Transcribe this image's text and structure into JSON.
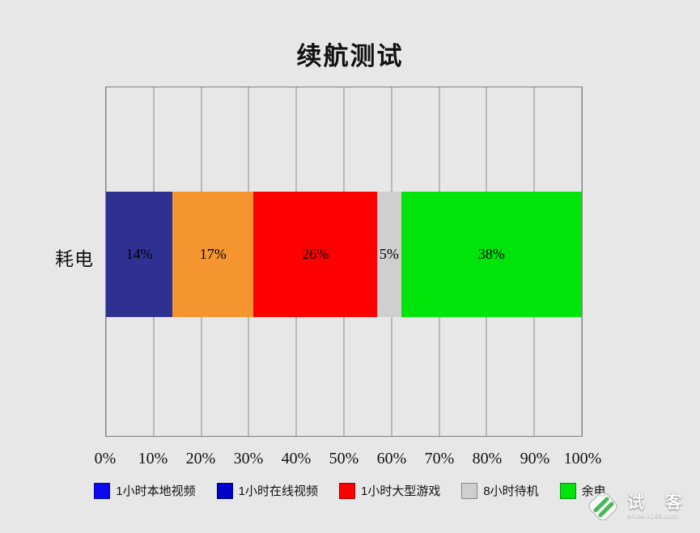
{
  "title": "续航测试",
  "chart_data": {
    "type": "bar",
    "orientation": "horizontal",
    "stacked": true,
    "title": "续航测试",
    "category_label": "耗电",
    "xlim": [
      0,
      100
    ],
    "grid": true,
    "x_ticks": [
      "0%",
      "10%",
      "20%",
      "30%",
      "40%",
      "50%",
      "60%",
      "70%",
      "80%",
      "90%",
      "100%"
    ],
    "series": [
      {
        "name": "1小时本地视频",
        "value": 14,
        "label": "14%",
        "color": "#2e3192"
      },
      {
        "name": "1小时在线视频",
        "value": 17,
        "label": "17%",
        "color": "#f5952f"
      },
      {
        "name": "1小时大型游戏",
        "value": 26,
        "label": "26%",
        "color": "#fe0000"
      },
      {
        "name": "8小时待机",
        "value": 5,
        "label": "5%",
        "color": "#cfcfcf"
      },
      {
        "name": "余电",
        "value": 38,
        "label": "38%",
        "color": "#00e40a"
      }
    ]
  },
  "legend": {
    "items": [
      {
        "label": "1小时本地视频",
        "color": "#0a0af0"
      },
      {
        "label": "1小时在线视频",
        "color": "#0000c8"
      },
      {
        "label": "1小时大型游戏",
        "color": "#fe0000"
      },
      {
        "label": "8小时待机",
        "color": "#cfcfcf"
      },
      {
        "label": "余电",
        "color": "#00e40a"
      }
    ]
  },
  "watermark": {
    "text": "试 客",
    "subtext": "shike.it168.com"
  },
  "colors": {
    "background": "#e7e7e7",
    "gridline": "#8a8a8a",
    "plot_border": "#808080"
  }
}
